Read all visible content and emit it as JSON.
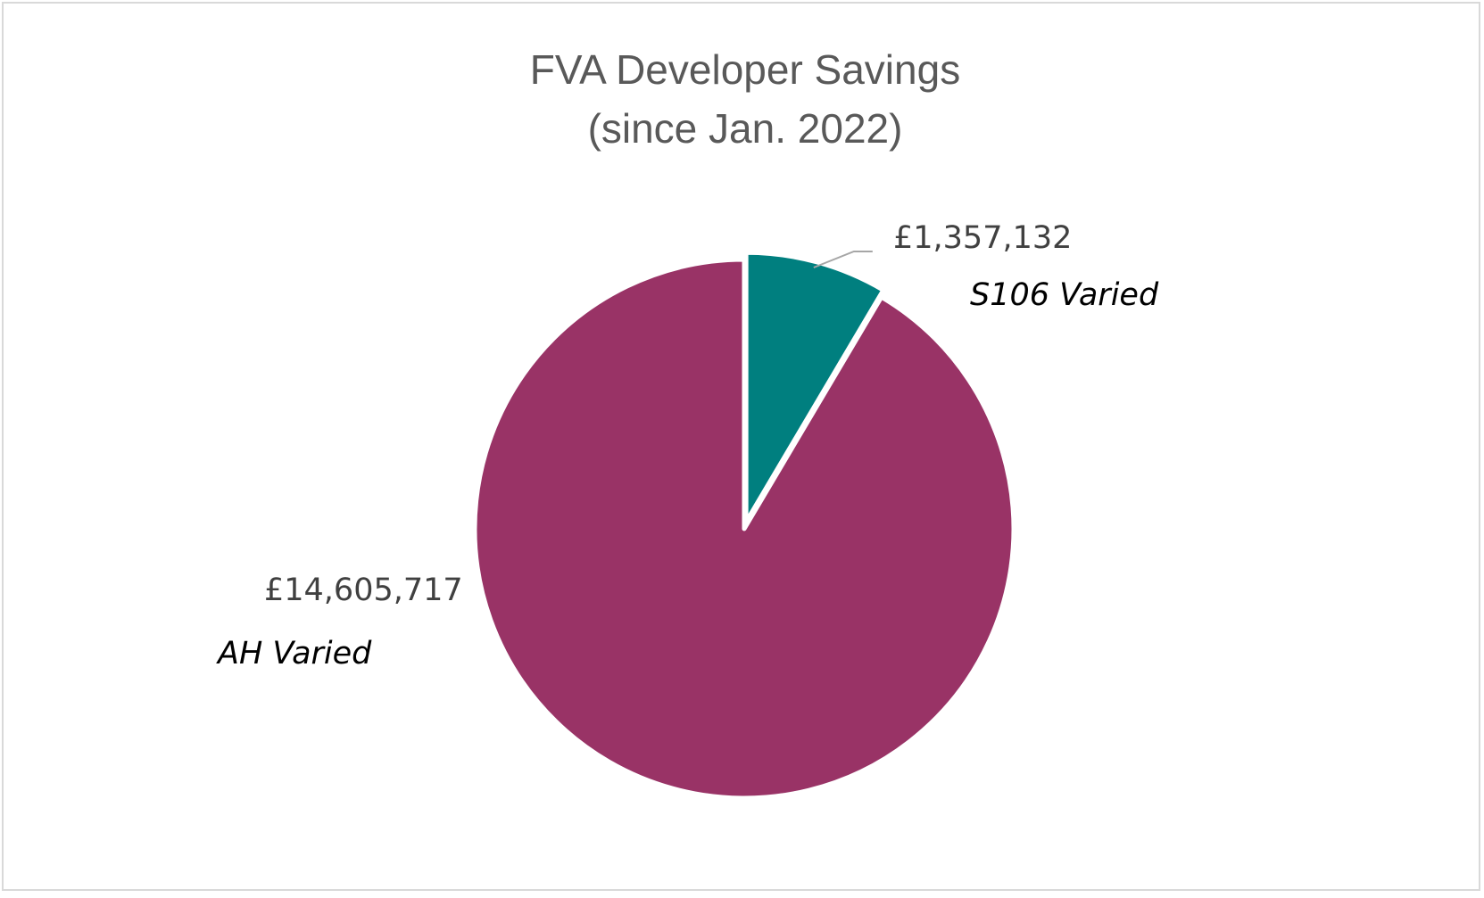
{
  "chart_data": {
    "type": "pie",
    "title": [
      "FVA Developer Savings",
      "(since Jan. 2022)"
    ],
    "start_angle_deg": 0,
    "direction": "clockwise",
    "slices": [
      {
        "label": "S106 Varied",
        "value": 1357132,
        "value_label": "£1,357,132",
        "color": "#007f7f",
        "exploded": true
      },
      {
        "label": "AH Varied",
        "value": 14605717,
        "value_label": "£14,605,717",
        "color": "#993366",
        "exploded": false
      }
    ],
    "legend": "none",
    "leader_line_color": "#a6a6a6"
  }
}
